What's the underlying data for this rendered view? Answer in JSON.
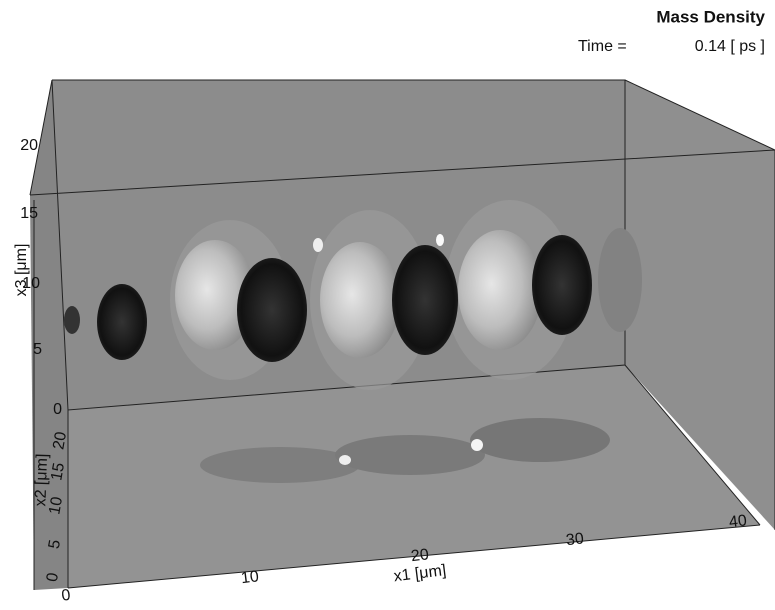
{
  "header": {
    "title": "Mass Density",
    "time_label": "Time =",
    "time_value": "0.14 [ ps ]"
  },
  "axes": {
    "x1": {
      "label": "x1 [μm]",
      "ticks": [
        0,
        10,
        20,
        30,
        40
      ]
    },
    "x2": {
      "label": "x2 [μm]",
      "ticks": [
        0,
        5,
        10,
        15,
        20
      ]
    },
    "x3": {
      "label": "x3 [μm]",
      "ticks": [
        0,
        5,
        10,
        15,
        20
      ]
    }
  }
}
